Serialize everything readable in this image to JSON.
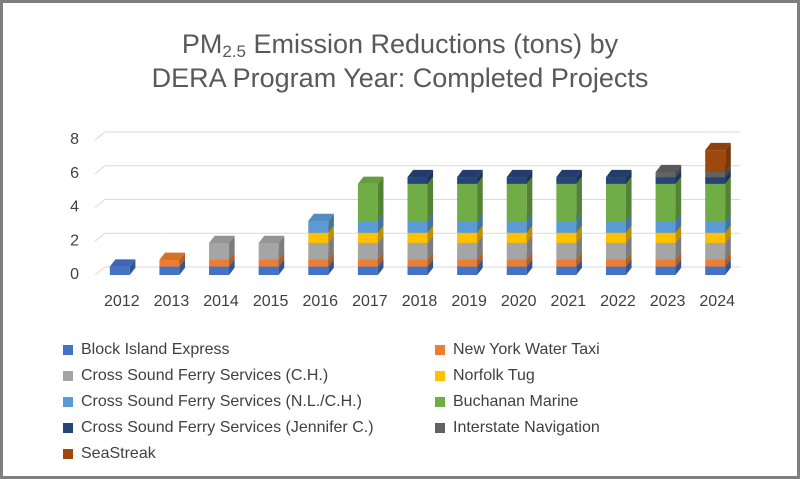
{
  "chart_data": {
    "type": "bar3d_stacked",
    "title": {
      "prefix": "PM",
      "subscript": "2.5",
      "rest": " Emission Reductions (tons) by",
      "line2": "DERA Program Year: Completed Projects"
    },
    "categories": [
      "2012",
      "2013",
      "2014",
      "2015",
      "2016",
      "2017",
      "2018",
      "2019",
      "2020",
      "2021",
      "2022",
      "2023",
      "2024"
    ],
    "series": [
      {
        "name": "Block Island Express",
        "color": "#4472c4",
        "values": [
          0.5,
          0.5,
          0.5,
          0.5,
          0.5,
          0.5,
          0.5,
          0.5,
          0.5,
          0.5,
          0.5,
          0.5,
          0.5
        ]
      },
      {
        "name": "New York Water Taxi",
        "color": "#ed7d31",
        "values": [
          null,
          0.4,
          0.4,
          0.4,
          0.4,
          0.4,
          0.4,
          0.4,
          0.4,
          0.4,
          0.4,
          0.4,
          0.4
        ]
      },
      {
        "name": "Cross Sound Ferry Services (C.H.)",
        "color": "#a5a5a5",
        "values": [
          null,
          null,
          1.0,
          1.0,
          1.0,
          1.0,
          1.0,
          1.0,
          1.0,
          1.0,
          1.0,
          1.0,
          1.0
        ]
      },
      {
        "name": "Norfolk Tug",
        "color": "#ffc000",
        "values": [
          null,
          null,
          null,
          null,
          0.6,
          0.6,
          0.6,
          0.6,
          0.6,
          0.6,
          0.6,
          0.6,
          0.6
        ]
      },
      {
        "name": "Cross Sound Ferry Services (N.L./C.H.)",
        "color": "#5b9bd5",
        "values": [
          null,
          null,
          null,
          null,
          0.7,
          0.7,
          0.7,
          0.7,
          0.7,
          0.7,
          0.7,
          0.7,
          0.7
        ]
      },
      {
        "name": "Buchanan Marine",
        "color": "#70ad47",
        "values": [
          null,
          null,
          null,
          null,
          null,
          2.2,
          2.2,
          2.2,
          2.2,
          2.2,
          2.2,
          2.2,
          2.2
        ]
      },
      {
        "name": "Cross Sound Ferry Services (Jennifer C.)",
        "color": "#264478",
        "values": [
          null,
          null,
          null,
          null,
          null,
          null,
          0.4,
          0.4,
          0.4,
          0.4,
          0.4,
          0.4,
          0.4
        ]
      },
      {
        "name": "Interstate Navigation",
        "color": "#636363",
        "values": [
          null,
          null,
          null,
          null,
          null,
          null,
          null,
          null,
          null,
          null,
          null,
          0.3,
          0.3
        ]
      },
      {
        "name": "SeaStreak",
        "color": "#9e480e",
        "values": [
          null,
          null,
          null,
          null,
          null,
          null,
          null,
          null,
          null,
          null,
          null,
          null,
          1.3
        ]
      }
    ],
    "ylim": [
      0,
      8
    ],
    "yticks": [
      0,
      2,
      4,
      6,
      8
    ],
    "grid": true
  }
}
